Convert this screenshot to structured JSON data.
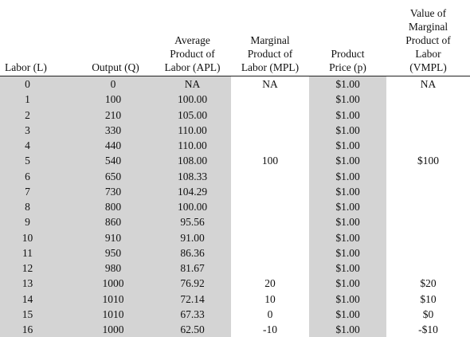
{
  "table": {
    "headers": [
      [
        "Labor (L)"
      ],
      [
        "Output (Q)"
      ],
      [
        "Average",
        "Product of",
        "Labor (APL)"
      ],
      [
        "Marginal",
        "Product of",
        "Labor (MPL)"
      ],
      [
        "Product",
        "Price (p)"
      ],
      [
        "Value of",
        "Marginal",
        "Product of",
        "Labor",
        "(VMPL)"
      ]
    ],
    "rows": [
      [
        "0",
        "0",
        "NA",
        "NA",
        "$1.00",
        "NA"
      ],
      [
        "1",
        "100",
        "100.00",
        "",
        "$1.00",
        ""
      ],
      [
        "2",
        "210",
        "105.00",
        "",
        "$1.00",
        ""
      ],
      [
        "3",
        "330",
        "110.00",
        "",
        "$1.00",
        ""
      ],
      [
        "4",
        "440",
        "110.00",
        "",
        "$1.00",
        ""
      ],
      [
        "5",
        "540",
        "108.00",
        "100",
        "$1.00",
        "$100"
      ],
      [
        "6",
        "650",
        "108.33",
        "",
        "$1.00",
        ""
      ],
      [
        "7",
        "730",
        "104.29",
        "",
        "$1.00",
        ""
      ],
      [
        "8",
        "800",
        "100.00",
        "",
        "$1.00",
        ""
      ],
      [
        "9",
        "860",
        "95.56",
        "",
        "$1.00",
        ""
      ],
      [
        "10",
        "910",
        "91.00",
        "",
        "$1.00",
        ""
      ],
      [
        "11",
        "950",
        "86.36",
        "",
        "$1.00",
        ""
      ],
      [
        "12",
        "980",
        "81.67",
        "",
        "$1.00",
        ""
      ],
      [
        "13",
        "1000",
        "76.92",
        "20",
        "$1.00",
        "$20"
      ],
      [
        "14",
        "1010",
        "72.14",
        "10",
        "$1.00",
        "$10"
      ],
      [
        "15",
        "1010",
        "67.33",
        "0",
        "$1.00",
        "$0"
      ],
      [
        "16",
        "1000",
        "62.50",
        "-10",
        "$1.00",
        "-$10"
      ]
    ],
    "shading_color": "#d4d4d4"
  }
}
